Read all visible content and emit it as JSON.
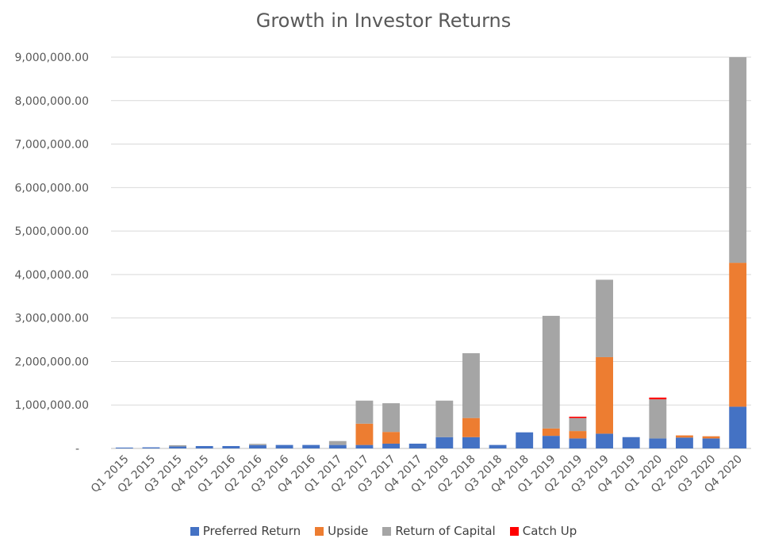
{
  "chart_data": {
    "type": "bar",
    "stacked": true,
    "title": "Growth in Investor Returns",
    "xlabel": "",
    "ylabel": "",
    "ylim": [
      0,
      9000000
    ],
    "yticks": [
      0,
      1000000,
      2000000,
      3000000,
      4000000,
      5000000,
      6000000,
      7000000,
      8000000,
      9000000
    ],
    "ytick_labels": [
      "-",
      "1,000,000.00",
      "2,000,000.00",
      "3,000,000.00",
      "4,000,000.00",
      "5,000,000.00",
      "6,000,000.00",
      "7,000,000.00",
      "8,000,000.00",
      "9,000,000.00"
    ],
    "grid": true,
    "legend_position": "bottom",
    "categories": [
      "Q1 2015",
      "Q2 2015",
      "Q3 2015",
      "Q4 2015",
      "Q1 2016",
      "Q2 2016",
      "Q3 2016",
      "Q4 2016",
      "Q1 2017",
      "Q2 2017",
      "Q3 2017",
      "Q4 2017",
      "Q1 2018",
      "Q2 2018",
      "Q3 2018",
      "Q4 2018",
      "Q1 2019",
      "Q2 2019",
      "Q3 2019",
      "Q4 2019",
      "Q1 2020",
      "Q2 2020",
      "Q3 2020",
      "Q4 2020"
    ],
    "series": [
      {
        "name": "Preferred Return",
        "color": "#4472C4",
        "values": [
          20000,
          25000,
          45000,
          55000,
          55000,
          75000,
          80000,
          80000,
          80000,
          80000,
          110000,
          110000,
          260000,
          260000,
          80000,
          370000,
          290000,
          230000,
          340000,
          260000,
          230000,
          250000,
          230000,
          960000
        ]
      },
      {
        "name": "Upside",
        "color": "#ED7D31",
        "values": [
          0,
          0,
          0,
          0,
          0,
          0,
          0,
          0,
          0,
          490000,
          270000,
          0,
          0,
          440000,
          0,
          0,
          170000,
          170000,
          1760000,
          0,
          0,
          50000,
          50000,
          3310000
        ]
      },
      {
        "name": "Return of Capital",
        "color": "#A5A5A5",
        "values": [
          0,
          0,
          30000,
          0,
          0,
          30000,
          0,
          0,
          90000,
          530000,
          660000,
          0,
          840000,
          1490000,
          0,
          0,
          2590000,
          300000,
          1780000,
          0,
          900000,
          0,
          0,
          4730000
        ]
      },
      {
        "name": "Catch Up",
        "color": "#FF0000",
        "values": [
          0,
          0,
          0,
          0,
          0,
          0,
          0,
          0,
          0,
          0,
          0,
          0,
          0,
          0,
          0,
          0,
          0,
          30000,
          0,
          0,
          40000,
          0,
          0,
          0
        ]
      }
    ]
  }
}
